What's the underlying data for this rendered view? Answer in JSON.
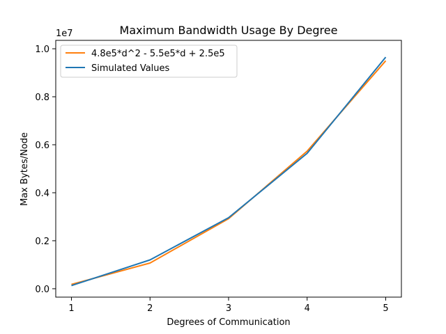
{
  "chart_data": {
    "type": "line",
    "title": "Maximum Bandwidth Usage By Degree",
    "xlabel": "Degrees of Communication",
    "ylabel": "Max Bytes/Node",
    "y_offset_label": "1e7",
    "x": [
      1,
      2,
      3,
      4,
      5
    ],
    "xticks": [
      "1",
      "2",
      "3",
      "4",
      "5"
    ],
    "yticks": [
      "0.0",
      "0.2",
      "0.4",
      "0.6",
      "0.8",
      "1.0"
    ],
    "ytick_values": [
      0,
      2000000,
      4000000,
      6000000,
      8000000,
      10000000
    ],
    "xlim": [
      0.8,
      5.2
    ],
    "ylim": [
      -350000,
      10350000
    ],
    "grid": false,
    "legend_position": "top-left",
    "series": [
      {
        "name": "4.8e5*d^2 - 5.5e5*d + 2.5e5",
        "color": "#ff7f0e",
        "values": [
          180000,
          1070000,
          2920000,
          5730000,
          9500000
        ]
      },
      {
        "name": "Simulated Values",
        "color": "#1f77b4",
        "values": [
          130000,
          1200000,
          2960000,
          5640000,
          9650000
        ]
      }
    ]
  }
}
